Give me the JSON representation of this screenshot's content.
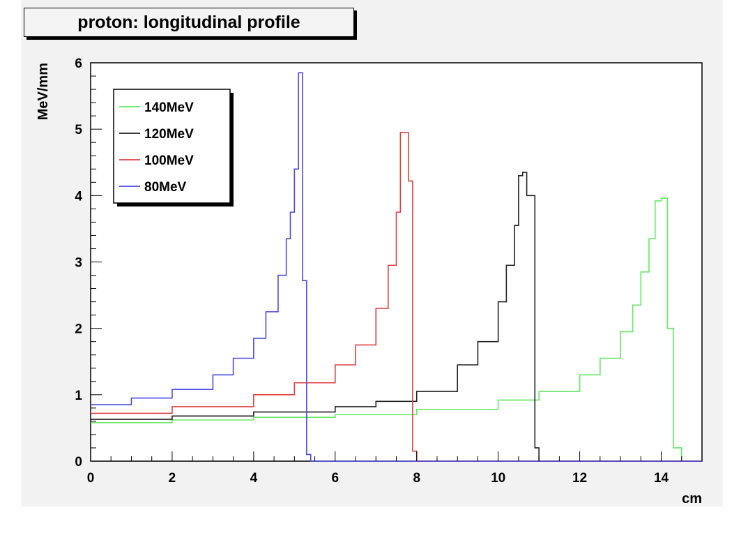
{
  "chart_data": {
    "type": "line",
    "title": "proton: longitudinal profile",
    "xlabel": "cm",
    "ylabel": "MeV/mm",
    "xlim": [
      0,
      15
    ],
    "ylim": [
      0,
      6
    ],
    "x_ticks": [
      "0",
      "2",
      "4",
      "6",
      "8",
      "10",
      "12",
      "14"
    ],
    "y_ticks": [
      "0",
      "1",
      "2",
      "3",
      "4",
      "5",
      "6"
    ],
    "legend_position": "top-left",
    "series": [
      {
        "name": "140MeV",
        "color": "#66e666",
        "x": [
          0,
          2,
          4,
          6,
          8,
          10,
          11,
          12,
          12.5,
          13,
          13.3,
          13.5,
          13.7,
          13.85,
          14.0,
          14.15,
          14.3,
          14.5,
          15
        ],
        "y": [
          0.58,
          0.62,
          0.66,
          0.7,
          0.78,
          0.92,
          1.05,
          1.3,
          1.55,
          1.95,
          2.35,
          2.85,
          3.35,
          3.92,
          3.96,
          2.0,
          0.2,
          0.0,
          0.0
        ]
      },
      {
        "name": "120MeV",
        "color": "#222222",
        "x": [
          0,
          2,
          4,
          6,
          7,
          8,
          9,
          9.5,
          10,
          10.2,
          10.4,
          10.5,
          10.6,
          10.7,
          10.9,
          11.0,
          15
        ],
        "y": [
          0.63,
          0.68,
          0.74,
          0.82,
          0.9,
          1.05,
          1.45,
          1.8,
          2.4,
          2.95,
          3.55,
          4.3,
          4.35,
          4.0,
          0.2,
          0.0,
          0.0
        ]
      },
      {
        "name": "100MeV",
        "color": "#e04040",
        "x": [
          0,
          2,
          4,
          5,
          6,
          6.5,
          7.0,
          7.3,
          7.5,
          7.6,
          7.7,
          7.8,
          7.9,
          8.0,
          15
        ],
        "y": [
          0.72,
          0.82,
          1.0,
          1.18,
          1.45,
          1.75,
          2.3,
          2.95,
          3.75,
          4.95,
          4.95,
          4.22,
          0.15,
          0.0,
          0.0
        ]
      },
      {
        "name": "80MeV",
        "color": "#4a4ae6",
        "x": [
          0,
          1,
          2,
          3,
          3.5,
          4,
          4.3,
          4.6,
          4.8,
          4.9,
          5.0,
          5.1,
          5.2,
          5.3,
          5.4,
          15
        ],
        "y": [
          0.85,
          0.95,
          1.08,
          1.3,
          1.55,
          1.85,
          2.25,
          2.8,
          3.35,
          3.75,
          4.4,
          5.85,
          2.72,
          0.1,
          0.0,
          0.0
        ]
      }
    ]
  }
}
